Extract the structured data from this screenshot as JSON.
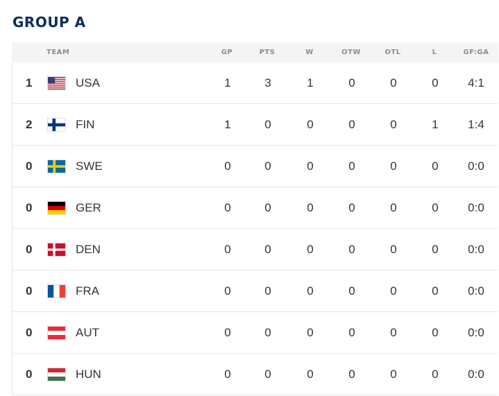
{
  "group": {
    "title": "GROUP A"
  },
  "headers": {
    "team": "TEAM",
    "gp": "GP",
    "pts": "PTS",
    "w": "W",
    "otw": "OTW",
    "otl": "OTL",
    "l": "L",
    "gfga": "GF:GA"
  },
  "rows": [
    {
      "rank": "1",
      "team": "USA",
      "flag": "usa-flag-icon",
      "gp": "1",
      "pts": "3",
      "w": "1",
      "otw": "0",
      "otl": "0",
      "l": "0",
      "gfga": "4:1"
    },
    {
      "rank": "2",
      "team": "FIN",
      "flag": "finland-flag-icon",
      "gp": "1",
      "pts": "0",
      "w": "0",
      "otw": "0",
      "otl": "0",
      "l": "1",
      "gfga": "1:4"
    },
    {
      "rank": "0",
      "team": "SWE",
      "flag": "sweden-flag-icon",
      "gp": "0",
      "pts": "0",
      "w": "0",
      "otw": "0",
      "otl": "0",
      "l": "0",
      "gfga": "0:0"
    },
    {
      "rank": "0",
      "team": "GER",
      "flag": "germany-flag-icon",
      "gp": "0",
      "pts": "0",
      "w": "0",
      "otw": "0",
      "otl": "0",
      "l": "0",
      "gfga": "0:0"
    },
    {
      "rank": "0",
      "team": "DEN",
      "flag": "denmark-flag-icon",
      "gp": "0",
      "pts": "0",
      "w": "0",
      "otw": "0",
      "otl": "0",
      "l": "0",
      "gfga": "0:0"
    },
    {
      "rank": "0",
      "team": "FRA",
      "flag": "france-flag-icon",
      "gp": "0",
      "pts": "0",
      "w": "0",
      "otw": "0",
      "otl": "0",
      "l": "0",
      "gfga": "0:0"
    },
    {
      "rank": "0",
      "team": "AUT",
      "flag": "austria-flag-icon",
      "gp": "0",
      "pts": "0",
      "w": "0",
      "otw": "0",
      "otl": "0",
      "l": "0",
      "gfga": "0:0"
    },
    {
      "rank": "0",
      "team": "HUN",
      "flag": "hungary-flag-icon",
      "gp": "0",
      "pts": "0",
      "w": "0",
      "otw": "0",
      "otl": "0",
      "l": "0",
      "gfga": "0:0"
    }
  ],
  "colors": {
    "title": "#0b2f5b",
    "header_bg": "#f4f4f4",
    "divider": "#e6e6e6"
  }
}
